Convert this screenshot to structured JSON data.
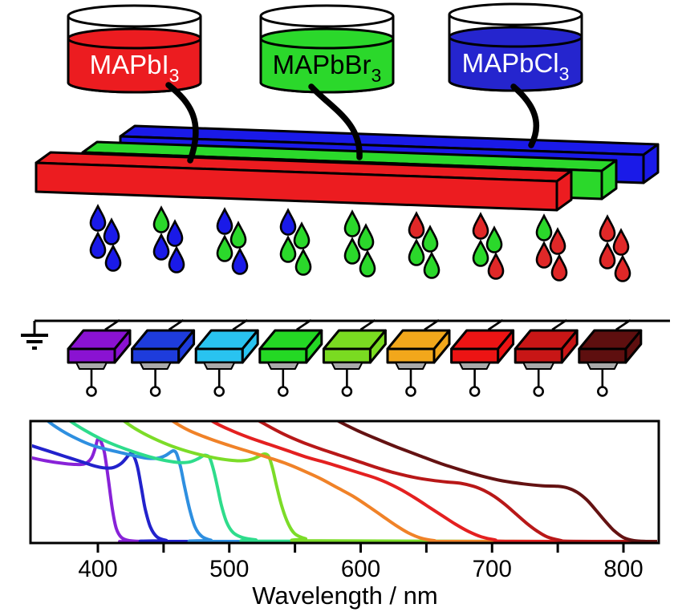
{
  "beakers": [
    {
      "label": "MAPbI",
      "subscript": "3",
      "liquid_color": "#EC1C20",
      "text_color": "#FFFFFF",
      "glass_color": "#FFFFFF"
    },
    {
      "label": "MAPbBr",
      "subscript": "3",
      "liquid_color": "#2BD82B",
      "text_color": "#000000",
      "glass_color": "#FFFFFF"
    },
    {
      "label": "MAPbCl",
      "subscript": "3",
      "liquid_color": "#2525CE",
      "text_color": "#FFFFFF",
      "glass_color": "#FFFFFF"
    }
  ],
  "films": [
    {
      "name": "MAPbI3-film",
      "color": "#EC1C20"
    },
    {
      "name": "MAPbBr3-film",
      "color": "#2BD82B"
    },
    {
      "name": "MAPbCl3-film",
      "color": "#1A1AE8"
    }
  ],
  "droplets": {
    "palette": {
      "blue": "#1A1AE8",
      "green": "#2BD82B",
      "red": "#E02828"
    },
    "groups": [
      [
        "blue",
        "blue",
        "blue",
        "blue"
      ],
      [
        "green",
        "blue",
        "blue",
        "blue"
      ],
      [
        "blue",
        "green",
        "green",
        "blue"
      ],
      [
        "blue",
        "green",
        "green",
        "green"
      ],
      [
        "green",
        "green",
        "green",
        "green"
      ],
      [
        "red",
        "green",
        "green",
        "green"
      ],
      [
        "red",
        "green",
        "green",
        "red"
      ],
      [
        "green",
        "red",
        "red",
        "red"
      ],
      [
        "red",
        "red",
        "red",
        "red"
      ]
    ]
  },
  "detector_array": {
    "pedestal_color": "#A9A9A9",
    "devices": [
      {
        "name": "violet",
        "color": "#8A12D2"
      },
      {
        "name": "blue",
        "color": "#1E3CDC"
      },
      {
        "name": "cyan",
        "color": "#29C3F0"
      },
      {
        "name": "green",
        "color": "#24D824"
      },
      {
        "name": "yellow-green",
        "color": "#7ADB21"
      },
      {
        "name": "amber",
        "color": "#F2A71B"
      },
      {
        "name": "red",
        "color": "#EC1414"
      },
      {
        "name": "crimson",
        "color": "#C81616"
      },
      {
        "name": "maroon",
        "color": "#5E0F0F"
      }
    ]
  },
  "chart_data": {
    "type": "line",
    "title": "",
    "xlabel": "Wavelength / nm",
    "ylabel": "",
    "xlim": [
      349,
      827
    ],
    "ylim": [
      0,
      1
    ],
    "grid": false,
    "legend": "none",
    "x_ticks": [
      400,
      450,
      500,
      550,
      600,
      650,
      700,
      750,
      800
    ],
    "x_tick_labels": [
      "400",
      "500",
      "600",
      "700",
      "800"
    ],
    "series": [
      {
        "name": "violet",
        "color": "#8822D8",
        "points": [
          [
            349,
            0.7
          ],
          [
            360,
            0.675
          ],
          [
            372,
            0.655
          ],
          [
            382,
            0.645
          ],
          [
            390,
            0.65
          ],
          [
            395,
            0.695
          ],
          [
            398,
            0.78
          ],
          [
            400,
            0.855
          ],
          [
            402,
            0.84
          ],
          [
            405,
            0.74
          ],
          [
            408,
            0.52
          ],
          [
            411,
            0.28
          ],
          [
            414,
            0.12
          ],
          [
            418,
            0.045
          ],
          [
            424,
            0.02
          ],
          [
            432,
            0.014
          ],
          [
            450,
            0.012
          ],
          [
            826,
            0.012
          ]
        ]
      },
      {
        "name": "blue",
        "color": "#2222CC",
        "points": [
          [
            349,
            0.8
          ],
          [
            362,
            0.755
          ],
          [
            375,
            0.71
          ],
          [
            388,
            0.665
          ],
          [
            398,
            0.63
          ],
          [
            406,
            0.615
          ],
          [
            412,
            0.62
          ],
          [
            418,
            0.655
          ],
          [
            423,
            0.715
          ],
          [
            425,
            0.735
          ],
          [
            427,
            0.72
          ],
          [
            430,
            0.63
          ],
          [
            433,
            0.46
          ],
          [
            436,
            0.28
          ],
          [
            440,
            0.13
          ],
          [
            445,
            0.05
          ],
          [
            452,
            0.022
          ],
          [
            462,
            0.013
          ],
          [
            826,
            0.012
          ]
        ]
      },
      {
        "name": "cyan",
        "color": "#2E8FE0",
        "points": [
          [
            355,
            1.08
          ],
          [
            362,
            1.0
          ],
          [
            372,
            0.925
          ],
          [
            384,
            0.855
          ],
          [
            396,
            0.8
          ],
          [
            408,
            0.765
          ],
          [
            420,
            0.735
          ],
          [
            430,
            0.71
          ],
          [
            438,
            0.695
          ],
          [
            445,
            0.695
          ],
          [
            451,
            0.715
          ],
          [
            456,
            0.75
          ],
          [
            458,
            0.755
          ],
          [
            460,
            0.73
          ],
          [
            463,
            0.62
          ],
          [
            466,
            0.46
          ],
          [
            470,
            0.27
          ],
          [
            474,
            0.13
          ],
          [
            479,
            0.055
          ],
          [
            486,
            0.024
          ],
          [
            497,
            0.013
          ],
          [
            826,
            0.012
          ]
        ]
      },
      {
        "name": "spring-green",
        "color": "#2EDC8C",
        "points": [
          [
            360,
            1.22
          ],
          [
            370,
            1.08
          ],
          [
            379,
            1.0
          ],
          [
            390,
            0.925
          ],
          [
            402,
            0.855
          ],
          [
            415,
            0.795
          ],
          [
            428,
            0.745
          ],
          [
            440,
            0.705
          ],
          [
            452,
            0.675
          ],
          [
            462,
            0.66
          ],
          [
            470,
            0.665
          ],
          [
            476,
            0.69
          ],
          [
            480,
            0.715
          ],
          [
            482,
            0.72
          ],
          [
            485,
            0.7
          ],
          [
            488,
            0.6
          ],
          [
            491,
            0.46
          ],
          [
            494,
            0.31
          ],
          [
            498,
            0.17
          ],
          [
            503,
            0.085
          ],
          [
            510,
            0.045
          ],
          [
            520,
            0.026
          ],
          [
            535,
            0.015
          ],
          [
            826,
            0.012
          ]
        ]
      },
      {
        "name": "lawn-green",
        "color": "#7CDC28",
        "points": [
          [
            400,
            1.25
          ],
          [
            412,
            1.08
          ],
          [
            420,
            1.0
          ],
          [
            432,
            0.915
          ],
          [
            446,
            0.84
          ],
          [
            460,
            0.78
          ],
          [
            474,
            0.735
          ],
          [
            488,
            0.7
          ],
          [
            500,
            0.68
          ],
          [
            510,
            0.675
          ],
          [
            518,
            0.69
          ],
          [
            524,
            0.72
          ],
          [
            527,
            0.73
          ],
          [
            530,
            0.71
          ],
          [
            533,
            0.61
          ],
          [
            536,
            0.47
          ],
          [
            540,
            0.3
          ],
          [
            545,
            0.155
          ],
          [
            550,
            0.075
          ],
          [
            558,
            0.036
          ],
          [
            570,
            0.018
          ],
          [
            826,
            0.012
          ]
        ]
      },
      {
        "name": "orange",
        "color": "#F08228",
        "points": [
          [
            435,
            1.28
          ],
          [
            446,
            1.1
          ],
          [
            457,
            1.0
          ],
          [
            470,
            0.92
          ],
          [
            485,
            0.855
          ],
          [
            500,
            0.8
          ],
          [
            515,
            0.75
          ],
          [
            530,
            0.7
          ],
          [
            545,
            0.645
          ],
          [
            558,
            0.585
          ],
          [
            570,
            0.525
          ],
          [
            582,
            0.455
          ],
          [
            594,
            0.385
          ],
          [
            606,
            0.3
          ],
          [
            616,
            0.225
          ],
          [
            626,
            0.15
          ],
          [
            636,
            0.085
          ],
          [
            646,
            0.04
          ],
          [
            656,
            0.02
          ],
          [
            668,
            0.013
          ],
          [
            826,
            0.012
          ]
        ]
      },
      {
        "name": "red",
        "color": "#E42020",
        "points": [
          [
            465,
            1.22
          ],
          [
            476,
            1.09
          ],
          [
            487,
            1.0
          ],
          [
            500,
            0.93
          ],
          [
            515,
            0.865
          ],
          [
            530,
            0.81
          ],
          [
            545,
            0.755
          ],
          [
            560,
            0.7
          ],
          [
            575,
            0.655
          ],
          [
            590,
            0.605
          ],
          [
            602,
            0.565
          ],
          [
            612,
            0.53
          ],
          [
            622,
            0.485
          ],
          [
            632,
            0.43
          ],
          [
            642,
            0.365
          ],
          [
            652,
            0.295
          ],
          [
            662,
            0.225
          ],
          [
            672,
            0.155
          ],
          [
            682,
            0.095
          ],
          [
            692,
            0.05
          ],
          [
            702,
            0.026
          ],
          [
            715,
            0.014
          ],
          [
            826,
            0.012
          ]
        ]
      },
      {
        "name": "crimson",
        "color": "#B81818",
        "points": [
          [
            505,
            1.15
          ],
          [
            517,
            1.04
          ],
          [
            528,
            0.97
          ],
          [
            542,
            0.89
          ],
          [
            556,
            0.825
          ],
          [
            570,
            0.77
          ],
          [
            584,
            0.72
          ],
          [
            598,
            0.67
          ],
          [
            612,
            0.62
          ],
          [
            626,
            0.575
          ],
          [
            640,
            0.54
          ],
          [
            654,
            0.515
          ],
          [
            666,
            0.5
          ],
          [
            676,
            0.49
          ],
          [
            686,
            0.465
          ],
          [
            694,
            0.43
          ],
          [
            702,
            0.38
          ],
          [
            710,
            0.315
          ],
          [
            718,
            0.24
          ],
          [
            726,
            0.165
          ],
          [
            734,
            0.1
          ],
          [
            742,
            0.05
          ],
          [
            752,
            0.022
          ],
          [
            762,
            0.014
          ],
          [
            826,
            0.012
          ]
        ]
      },
      {
        "name": "maroon",
        "color": "#641212",
        "points": [
          [
            560,
            1.18
          ],
          [
            572,
            1.07
          ],
          [
            583,
            1.0
          ],
          [
            597,
            0.925
          ],
          [
            612,
            0.855
          ],
          [
            628,
            0.785
          ],
          [
            644,
            0.72
          ],
          [
            660,
            0.655
          ],
          [
            676,
            0.6
          ],
          [
            692,
            0.55
          ],
          [
            708,
            0.51
          ],
          [
            724,
            0.485
          ],
          [
            738,
            0.47
          ],
          [
            750,
            0.465
          ],
          [
            758,
            0.45
          ],
          [
            765,
            0.415
          ],
          [
            772,
            0.355
          ],
          [
            779,
            0.27
          ],
          [
            786,
            0.18
          ],
          [
            793,
            0.1
          ],
          [
            800,
            0.045
          ],
          [
            808,
            0.02
          ],
          [
            818,
            0.013
          ],
          [
            826,
            0.012
          ]
        ]
      }
    ]
  }
}
